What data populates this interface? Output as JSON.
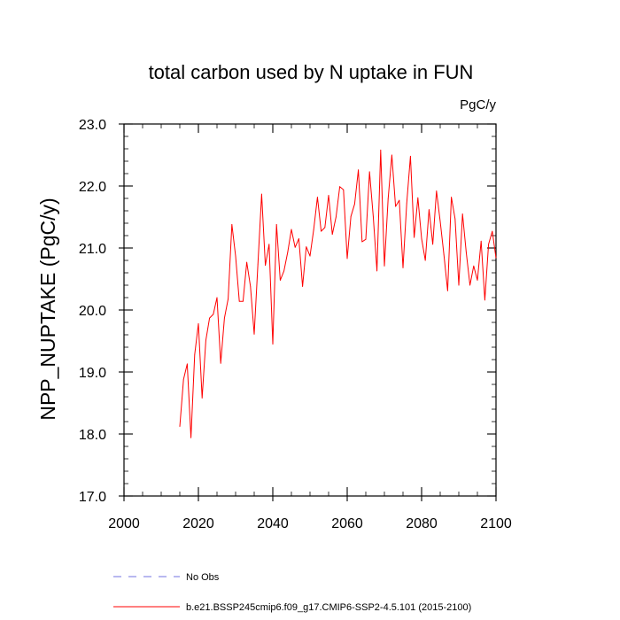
{
  "chart_data": {
    "type": "line",
    "title": "total carbon used by N uptake in FUN",
    "units": "PgC/y",
    "ylabel": "NPP_NUPTAKE  (PgC/y)",
    "xlabel": "",
    "xlim": [
      2000,
      2100
    ],
    "ylim": [
      17.0,
      23.0
    ],
    "xticks": [
      2000,
      2020,
      2040,
      2060,
      2080,
      2100
    ],
    "yticks": [
      17.0,
      18.0,
      19.0,
      20.0,
      21.0,
      22.0,
      23.0
    ],
    "xtick_labels": [
      "2000",
      "2020",
      "2040",
      "2060",
      "2080",
      "2100"
    ],
    "ytick_labels": [
      "17.0",
      "18.0",
      "19.0",
      "20.0",
      "21.0",
      "22.0",
      "23.0"
    ],
    "grid": false,
    "series": [
      {
        "name": "b.e21.BSSP245cmip6.f09_g17.CMIP6-SSP2-4.5.101 (2015-2100)",
        "color": "#ff0000",
        "style": "solid",
        "x": [
          2015,
          2016,
          2017,
          2018,
          2019,
          2020,
          2021,
          2022,
          2023,
          2024,
          2025,
          2026,
          2027,
          2028,
          2029,
          2030,
          2031,
          2032,
          2033,
          2034,
          2035,
          2036,
          2037,
          2038,
          2039,
          2040,
          2041,
          2042,
          2043,
          2044,
          2045,
          2046,
          2047,
          2048,
          2049,
          2050,
          2051,
          2052,
          2053,
          2054,
          2055,
          2056,
          2057,
          2058,
          2059,
          2060,
          2061,
          2062,
          2063,
          2064,
          2065,
          2066,
          2067,
          2068,
          2069,
          2070,
          2071,
          2072,
          2073,
          2074,
          2075,
          2076,
          2077,
          2078,
          2079,
          2080,
          2081,
          2082,
          2083,
          2084,
          2085,
          2086,
          2087,
          2088,
          2089,
          2090,
          2091,
          2092,
          2093,
          2094,
          2095,
          2096,
          2097,
          2098,
          2099,
          2100
        ],
        "values": [
          18.12,
          18.88,
          19.13,
          17.94,
          19.28,
          19.78,
          18.58,
          19.51,
          19.87,
          19.93,
          20.2,
          19.14,
          19.87,
          20.18,
          21.38,
          20.87,
          20.14,
          20.14,
          20.77,
          20.38,
          19.61,
          20.74,
          21.87,
          20.72,
          21.06,
          19.45,
          21.38,
          20.48,
          20.63,
          20.93,
          21.3,
          21.01,
          21.15,
          20.38,
          21.02,
          20.87,
          21.3,
          21.82,
          21.27,
          21.33,
          21.85,
          21.22,
          21.5,
          21.99,
          21.94,
          20.83,
          21.51,
          21.71,
          22.26,
          21.1,
          21.14,
          22.23,
          21.51,
          20.63,
          22.58,
          20.71,
          21.79,
          22.5,
          21.67,
          21.77,
          20.68,
          21.72,
          22.48,
          21.17,
          21.81,
          21.15,
          20.8,
          21.62,
          21.06,
          21.92,
          21.43,
          20.89,
          20.31,
          21.82,
          21.47,
          20.4,
          21.55,
          20.93,
          20.4,
          20.71,
          20.48,
          21.11,
          20.16,
          21.06,
          21.27,
          20.84
        ]
      },
      {
        "name": "No Obs",
        "color": "#7070e0",
        "style": "dashed",
        "x": [],
        "values": []
      }
    ],
    "legend_position": "bottom-left"
  }
}
